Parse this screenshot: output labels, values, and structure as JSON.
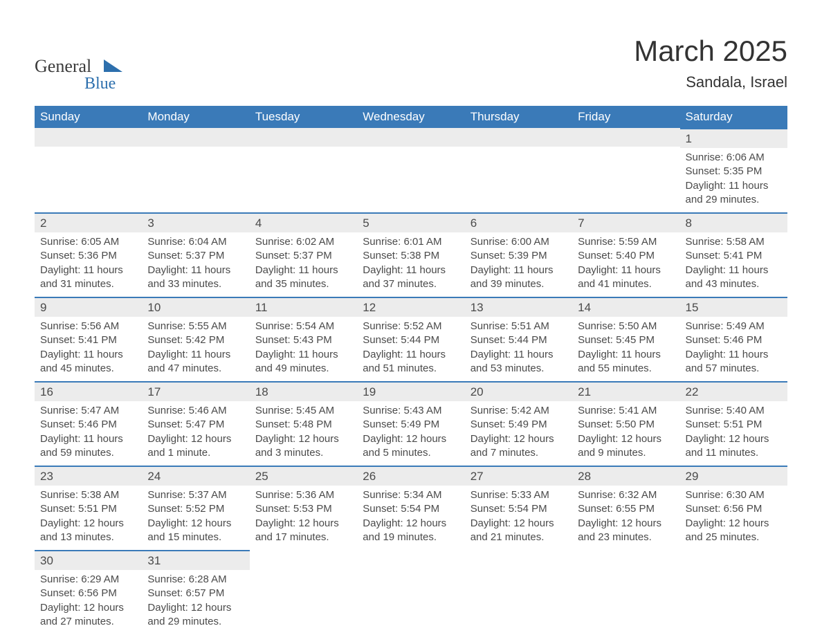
{
  "brand": {
    "text1": "General",
    "text2": "Blue",
    "color_text": "#3b3b3b",
    "color_accent": "#2d6fad",
    "font_family": "Georgia, 'Times New Roman', serif"
  },
  "title": "March 2025",
  "location": "Sandala, Israel",
  "colors": {
    "header_bg": "#3a7ab8",
    "header_text": "#ffffff",
    "row_sep": "#3a7ab8",
    "daynum_bg": "#ececec",
    "body_text": "#4a4a4a",
    "page_bg": "#ffffff"
  },
  "weekdays": [
    "Sunday",
    "Monday",
    "Tuesday",
    "Wednesday",
    "Thursday",
    "Friday",
    "Saturday"
  ],
  "weeks": [
    [
      null,
      null,
      null,
      null,
      null,
      null,
      {
        "n": "1",
        "sr": "Sunrise: 6:06 AM",
        "ss": "Sunset: 5:35 PM",
        "dl": "Daylight: 11 hours and 29 minutes."
      }
    ],
    [
      {
        "n": "2",
        "sr": "Sunrise: 6:05 AM",
        "ss": "Sunset: 5:36 PM",
        "dl": "Daylight: 11 hours and 31 minutes."
      },
      {
        "n": "3",
        "sr": "Sunrise: 6:04 AM",
        "ss": "Sunset: 5:37 PM",
        "dl": "Daylight: 11 hours and 33 minutes."
      },
      {
        "n": "4",
        "sr": "Sunrise: 6:02 AM",
        "ss": "Sunset: 5:37 PM",
        "dl": "Daylight: 11 hours and 35 minutes."
      },
      {
        "n": "5",
        "sr": "Sunrise: 6:01 AM",
        "ss": "Sunset: 5:38 PM",
        "dl": "Daylight: 11 hours and 37 minutes."
      },
      {
        "n": "6",
        "sr": "Sunrise: 6:00 AM",
        "ss": "Sunset: 5:39 PM",
        "dl": "Daylight: 11 hours and 39 minutes."
      },
      {
        "n": "7",
        "sr": "Sunrise: 5:59 AM",
        "ss": "Sunset: 5:40 PM",
        "dl": "Daylight: 11 hours and 41 minutes."
      },
      {
        "n": "8",
        "sr": "Sunrise: 5:58 AM",
        "ss": "Sunset: 5:41 PM",
        "dl": "Daylight: 11 hours and 43 minutes."
      }
    ],
    [
      {
        "n": "9",
        "sr": "Sunrise: 5:56 AM",
        "ss": "Sunset: 5:41 PM",
        "dl": "Daylight: 11 hours and 45 minutes."
      },
      {
        "n": "10",
        "sr": "Sunrise: 5:55 AM",
        "ss": "Sunset: 5:42 PM",
        "dl": "Daylight: 11 hours and 47 minutes."
      },
      {
        "n": "11",
        "sr": "Sunrise: 5:54 AM",
        "ss": "Sunset: 5:43 PM",
        "dl": "Daylight: 11 hours and 49 minutes."
      },
      {
        "n": "12",
        "sr": "Sunrise: 5:52 AM",
        "ss": "Sunset: 5:44 PM",
        "dl": "Daylight: 11 hours and 51 minutes."
      },
      {
        "n": "13",
        "sr": "Sunrise: 5:51 AM",
        "ss": "Sunset: 5:44 PM",
        "dl": "Daylight: 11 hours and 53 minutes."
      },
      {
        "n": "14",
        "sr": "Sunrise: 5:50 AM",
        "ss": "Sunset: 5:45 PM",
        "dl": "Daylight: 11 hours and 55 minutes."
      },
      {
        "n": "15",
        "sr": "Sunrise: 5:49 AM",
        "ss": "Sunset: 5:46 PM",
        "dl": "Daylight: 11 hours and 57 minutes."
      }
    ],
    [
      {
        "n": "16",
        "sr": "Sunrise: 5:47 AM",
        "ss": "Sunset: 5:46 PM",
        "dl": "Daylight: 11 hours and 59 minutes."
      },
      {
        "n": "17",
        "sr": "Sunrise: 5:46 AM",
        "ss": "Sunset: 5:47 PM",
        "dl": "Daylight: 12 hours and 1 minute."
      },
      {
        "n": "18",
        "sr": "Sunrise: 5:45 AM",
        "ss": "Sunset: 5:48 PM",
        "dl": "Daylight: 12 hours and 3 minutes."
      },
      {
        "n": "19",
        "sr": "Sunrise: 5:43 AM",
        "ss": "Sunset: 5:49 PM",
        "dl": "Daylight: 12 hours and 5 minutes."
      },
      {
        "n": "20",
        "sr": "Sunrise: 5:42 AM",
        "ss": "Sunset: 5:49 PM",
        "dl": "Daylight: 12 hours and 7 minutes."
      },
      {
        "n": "21",
        "sr": "Sunrise: 5:41 AM",
        "ss": "Sunset: 5:50 PM",
        "dl": "Daylight: 12 hours and 9 minutes."
      },
      {
        "n": "22",
        "sr": "Sunrise: 5:40 AM",
        "ss": "Sunset: 5:51 PM",
        "dl": "Daylight: 12 hours and 11 minutes."
      }
    ],
    [
      {
        "n": "23",
        "sr": "Sunrise: 5:38 AM",
        "ss": "Sunset: 5:51 PM",
        "dl": "Daylight: 12 hours and 13 minutes."
      },
      {
        "n": "24",
        "sr": "Sunrise: 5:37 AM",
        "ss": "Sunset: 5:52 PM",
        "dl": "Daylight: 12 hours and 15 minutes."
      },
      {
        "n": "25",
        "sr": "Sunrise: 5:36 AM",
        "ss": "Sunset: 5:53 PM",
        "dl": "Daylight: 12 hours and 17 minutes."
      },
      {
        "n": "26",
        "sr": "Sunrise: 5:34 AM",
        "ss": "Sunset: 5:54 PM",
        "dl": "Daylight: 12 hours and 19 minutes."
      },
      {
        "n": "27",
        "sr": "Sunrise: 5:33 AM",
        "ss": "Sunset: 5:54 PM",
        "dl": "Daylight: 12 hours and 21 minutes."
      },
      {
        "n": "28",
        "sr": "Sunrise: 6:32 AM",
        "ss": "Sunset: 6:55 PM",
        "dl": "Daylight: 12 hours and 23 minutes."
      },
      {
        "n": "29",
        "sr": "Sunrise: 6:30 AM",
        "ss": "Sunset: 6:56 PM",
        "dl": "Daylight: 12 hours and 25 minutes."
      }
    ],
    [
      {
        "n": "30",
        "sr": "Sunrise: 6:29 AM",
        "ss": "Sunset: 6:56 PM",
        "dl": "Daylight: 12 hours and 27 minutes."
      },
      {
        "n": "31",
        "sr": "Sunrise: 6:28 AM",
        "ss": "Sunset: 6:57 PM",
        "dl": "Daylight: 12 hours and 29 minutes."
      },
      null,
      null,
      null,
      null,
      null
    ]
  ]
}
